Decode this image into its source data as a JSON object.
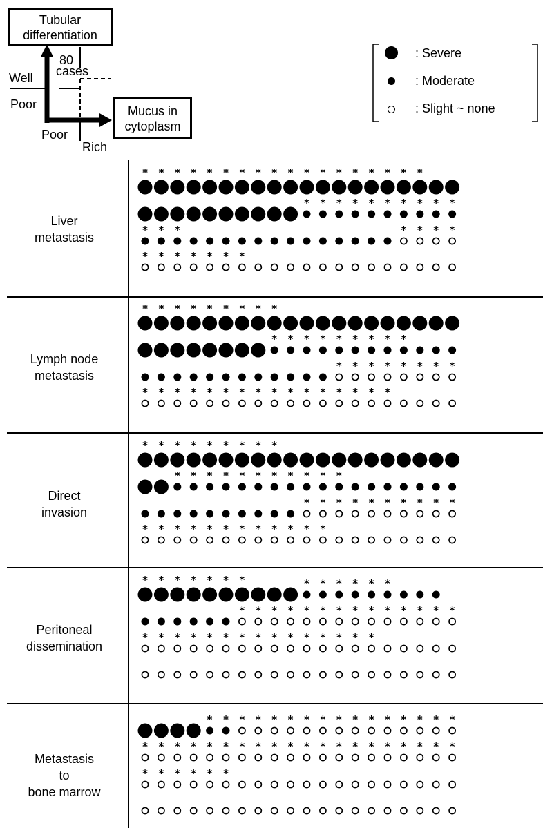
{
  "schema": {
    "box_tubular": [
      "Tubular",
      "differentiation"
    ],
    "box_mucus": [
      "Mucus in",
      "cytoplasm"
    ],
    "count_label": [
      "80",
      "cases"
    ],
    "label_well": "Well",
    "label_poor_y": "Poor",
    "label_poor_x": "Poor",
    "label_rich": "Rich"
  },
  "legend": [
    {
      "symbol": "large-filled",
      "label": ": Severe"
    },
    {
      "symbol": "small-filled",
      "label": ": Moderate"
    },
    {
      "symbol": "open",
      "label": ": Slight ~ none"
    }
  ],
  "panels": [
    {
      "name": "liver",
      "label": [
        "Liver",
        "metastasis"
      ],
      "rows": [
        {
          "marks": [
            "L",
            "L",
            "L",
            "L",
            "L",
            "L",
            "L",
            "L",
            "L",
            "L",
            "L",
            "L",
            "L",
            "L",
            "L",
            "L",
            "L",
            "L",
            "L",
            "L"
          ],
          "stars": [
            1,
            2,
            3,
            4,
            5,
            6,
            7,
            8,
            9,
            10,
            11,
            12,
            13,
            14,
            15,
            16,
            17,
            18
          ]
        },
        {
          "marks": [
            "L",
            "L",
            "L",
            "L",
            "L",
            "L",
            "L",
            "L",
            "L",
            "L",
            "M",
            "M",
            "M",
            "M",
            "M",
            "M",
            "M",
            "M",
            "M",
            "M"
          ],
          "stars": [
            11,
            12,
            13,
            14,
            15,
            16,
            17,
            18,
            19,
            20
          ]
        },
        {
          "marks": [
            "M",
            "M",
            "M",
            "M",
            "M",
            "M",
            "M",
            "M",
            "M",
            "M",
            "M",
            "M",
            "M",
            "M",
            "M",
            "M",
            "O",
            "O",
            "O",
            "O"
          ],
          "stars": [
            1,
            2,
            3,
            17,
            18,
            19,
            20
          ]
        },
        {
          "marks": [
            "O",
            "O",
            "O",
            "O",
            "O",
            "O",
            "O",
            "O",
            "O",
            "O",
            "O",
            "O",
            "O",
            "O",
            "O",
            "O",
            "O",
            "O",
            "O",
            "O"
          ],
          "stars": [
            1,
            2,
            3,
            4,
            5,
            6,
            7
          ]
        }
      ]
    },
    {
      "name": "lymph",
      "label": [
        "Lymph node",
        "metastasis"
      ],
      "rows": [
        {
          "marks": [
            "L",
            "L",
            "L",
            "L",
            "L",
            "L",
            "L",
            "L",
            "L",
            "L",
            "L",
            "L",
            "L",
            "L",
            "L",
            "L",
            "L",
            "L",
            "L",
            "L"
          ],
          "stars": [
            1,
            2,
            3,
            4,
            5,
            6,
            7,
            8,
            9
          ]
        },
        {
          "marks": [
            "L",
            "L",
            "L",
            "L",
            "L",
            "L",
            "L",
            "L",
            "M",
            "M",
            "M",
            "M",
            "M",
            "M",
            "M",
            "M",
            "M",
            "M",
            "M",
            "M"
          ],
          "stars": [
            9,
            10,
            11,
            12,
            13,
            14,
            15,
            16,
            17
          ]
        },
        {
          "marks": [
            "M",
            "M",
            "M",
            "M",
            "M",
            "M",
            "M",
            "M",
            "M",
            "M",
            "M",
            "M",
            "O",
            "O",
            "O",
            "O",
            "O",
            "O",
            "O",
            "O"
          ],
          "stars": [
            13,
            14,
            15,
            16,
            17,
            18,
            19,
            20
          ]
        },
        {
          "marks": [
            "O",
            "O",
            "O",
            "O",
            "O",
            "O",
            "O",
            "O",
            "O",
            "O",
            "O",
            "O",
            "O",
            "O",
            "O",
            "O",
            "O",
            "O",
            "O",
            "O"
          ],
          "stars": [
            1,
            2,
            3,
            4,
            5,
            6,
            7,
            8,
            9,
            10,
            11,
            12,
            13,
            14,
            15,
            16
          ]
        }
      ]
    },
    {
      "name": "direct",
      "label": [
        "Direct",
        "invasion"
      ],
      "rows": [
        {
          "marks": [
            "L",
            "L",
            "L",
            "L",
            "L",
            "L",
            "L",
            "L",
            "L",
            "L",
            "L",
            "L",
            "L",
            "L",
            "L",
            "L",
            "L",
            "L",
            "L",
            "L"
          ],
          "stars": [
            1,
            2,
            3,
            4,
            5,
            6,
            7,
            8,
            9
          ]
        },
        {
          "marks": [
            "L",
            "L",
            "M",
            "M",
            "M",
            "M",
            "M",
            "M",
            "M",
            "M",
            "M",
            "M",
            "M",
            "M",
            "M",
            "M",
            "M",
            "M",
            "M",
            "M"
          ],
          "stars": [
            3,
            4,
            5,
            6,
            7,
            8,
            9,
            10,
            11,
            12,
            13
          ]
        },
        {
          "marks": [
            "M",
            "M",
            "M",
            "M",
            "M",
            "M",
            "M",
            "M",
            "M",
            "M",
            "O",
            "O",
            "O",
            "O",
            "O",
            "O",
            "O",
            "O",
            "O",
            "O"
          ],
          "stars": [
            11,
            12,
            13,
            14,
            15,
            16,
            17,
            18,
            19,
            20
          ]
        },
        {
          "marks": [
            "O",
            "O",
            "O",
            "O",
            "O",
            "O",
            "O",
            "O",
            "O",
            "O",
            "O",
            "O",
            "O",
            "O",
            "O",
            "O",
            "O",
            "O",
            "O",
            "O"
          ],
          "stars": [
            1,
            2,
            3,
            4,
            5,
            6,
            7,
            8,
            9,
            10,
            11,
            12
          ]
        }
      ]
    },
    {
      "name": "peritoneal",
      "label": [
        "Peritoneal",
        "dissemination"
      ],
      "rows": [
        {
          "marks": [
            "L",
            "L",
            "L",
            "L",
            "L",
            "L",
            "L",
            "L",
            "L",
            "L",
            "M",
            "M",
            "M",
            "M",
            "M",
            "M",
            "M",
            "M",
            "M",
            ""
          ],
          "stars": [
            1,
            2,
            3,
            4,
            5,
            6,
            7,
            11,
            12,
            13,
            14,
            15,
            16
          ]
        },
        {
          "marks": [
            "M",
            "M",
            "M",
            "M",
            "M",
            "M",
            "O",
            "O",
            "O",
            "O",
            "O",
            "O",
            "O",
            "O",
            "O",
            "O",
            "O",
            "O",
            "O",
            "O"
          ],
          "stars": [
            7,
            8,
            9,
            10,
            11,
            12,
            13,
            14,
            15,
            16,
            17,
            18,
            19,
            20
          ]
        },
        {
          "marks": [
            "O",
            "O",
            "O",
            "O",
            "O",
            "O",
            "O",
            "O",
            "O",
            "O",
            "O",
            "O",
            "O",
            "O",
            "O",
            "O",
            "O",
            "O",
            "O",
            "O"
          ],
          "stars": [
            1,
            2,
            3,
            4,
            5,
            6,
            7,
            8,
            9,
            10,
            11,
            12,
            13,
            14,
            15
          ]
        },
        {
          "marks": [
            "O",
            "O",
            "O",
            "O",
            "O",
            "O",
            "O",
            "O",
            "O",
            "O",
            "O",
            "O",
            "O",
            "O",
            "O",
            "O",
            "O",
            "O",
            "O",
            "O"
          ],
          "stars": []
        }
      ]
    },
    {
      "name": "bone-marrow",
      "label": [
        "Metastasis",
        "to",
        "bone marrow"
      ],
      "rows": [
        {
          "marks": [
            "L",
            "L",
            "L",
            "L",
            "M",
            "M",
            "O",
            "O",
            "O",
            "O",
            "O",
            "O",
            "O",
            "O",
            "O",
            "O",
            "O",
            "O",
            "O",
            "O"
          ],
          "stars": [
            5,
            6,
            7,
            8,
            9,
            10,
            11,
            12,
            13,
            14,
            15,
            16,
            17,
            18,
            19,
            20
          ]
        },
        {
          "marks": [
            "O",
            "O",
            "O",
            "O",
            "O",
            "O",
            "O",
            "O",
            "O",
            "O",
            "O",
            "O",
            "O",
            "O",
            "O",
            "O",
            "O",
            "O",
            "O",
            "O"
          ],
          "stars": [
            1,
            2,
            3,
            4,
            5,
            6,
            7,
            8,
            9,
            10,
            11,
            12,
            13,
            14,
            15,
            16,
            17,
            18,
            19,
            20
          ]
        },
        {
          "marks": [
            "O",
            "O",
            "O",
            "O",
            "O",
            "O",
            "O",
            "O",
            "O",
            "O",
            "O",
            "O",
            "O",
            "O",
            "O",
            "O",
            "O",
            "O",
            "O",
            "O"
          ],
          "stars": [
            1,
            2,
            3,
            4,
            5,
            6
          ]
        },
        {
          "marks": [
            "O",
            "O",
            "O",
            "O",
            "O",
            "O",
            "O",
            "O",
            "O",
            "O",
            "O",
            "O",
            "O",
            "O",
            "O",
            "O",
            "O",
            "O",
            "O",
            "O"
          ],
          "stars": []
        }
      ]
    }
  ]
}
